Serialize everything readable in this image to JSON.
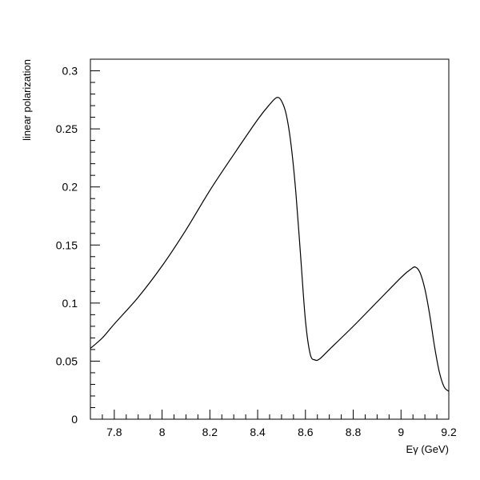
{
  "chart_data": {
    "type": "line",
    "title": "",
    "xlabel": "Eγ (GeV)",
    "ylabel": "linear polarization",
    "xlim": [
      7.7,
      9.2
    ],
    "ylim": [
      0,
      0.31
    ],
    "grid": false,
    "x_ticks": [
      7.8,
      8.0,
      8.2,
      8.4,
      8.6,
      8.8,
      9.0,
      9.2
    ],
    "x_tick_labels": [
      "7.8",
      "8",
      "8.2",
      "8.4",
      "8.6",
      "8.8",
      "9",
      "9.2"
    ],
    "y_ticks": [
      0,
      0.05,
      0.1,
      0.15,
      0.2,
      0.25,
      0.3
    ],
    "y_tick_labels": [
      "0",
      "0.05",
      "0.1",
      "0.15",
      "0.2",
      "0.25",
      "0.3"
    ],
    "line_color": "#000000",
    "series": [
      {
        "x": [
          7.7,
          7.75,
          7.8,
          7.9,
          8.0,
          8.1,
          8.2,
          8.3,
          8.4,
          8.45,
          8.48,
          8.5,
          8.52,
          8.54,
          8.56,
          8.58,
          8.6,
          8.62,
          8.64,
          8.66,
          8.7,
          8.8,
          8.9,
          9.0,
          9.04,
          9.06,
          9.08,
          9.1,
          9.12,
          9.14,
          9.16,
          9.18,
          9.2
        ],
        "y": [
          0.061,
          0.07,
          0.082,
          0.105,
          0.132,
          0.163,
          0.197,
          0.228,
          0.258,
          0.271,
          0.277,
          0.274,
          0.262,
          0.236,
          0.195,
          0.14,
          0.085,
          0.056,
          0.051,
          0.052,
          0.06,
          0.08,
          0.101,
          0.122,
          0.129,
          0.131,
          0.126,
          0.112,
          0.09,
          0.063,
          0.041,
          0.028,
          0.024
        ]
      }
    ]
  }
}
